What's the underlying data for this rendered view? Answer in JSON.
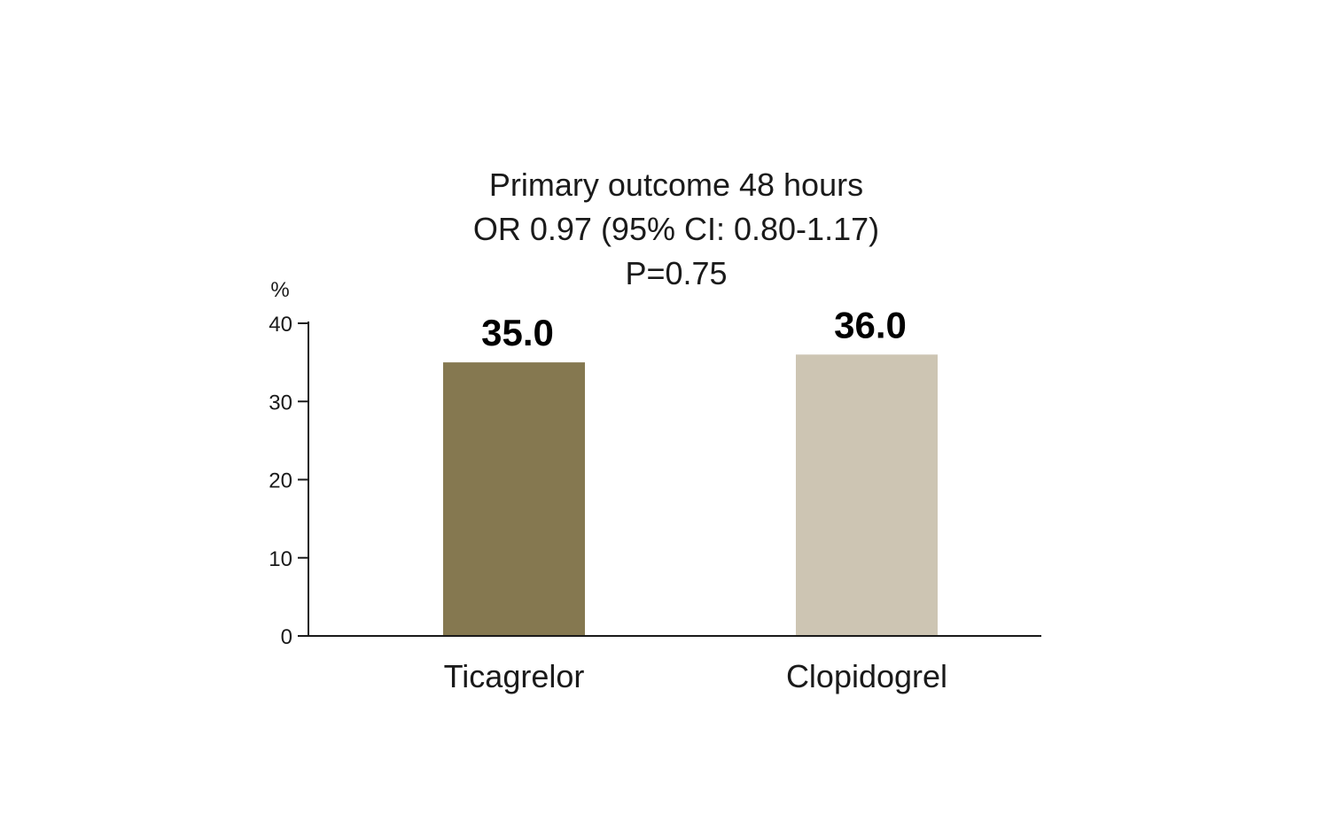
{
  "chart_data": {
    "type": "bar",
    "title_lines": [
      "Primary outcome 48 hours",
      "OR 0.97 (95% CI: 0.80-1.17)",
      "P=0.75"
    ],
    "ylabel": "%",
    "xlabel": "",
    "categories": [
      "Ticagrelor",
      "Clopidogrel"
    ],
    "values": [
      35.0,
      36.0
    ],
    "value_labels": [
      "35.0",
      "36.0"
    ],
    "bar_colors": [
      "#857850",
      "#cdc5b3"
    ],
    "ylim": [
      0,
      40
    ],
    "yticks": [
      0,
      10,
      20,
      30,
      40
    ],
    "ytick_labels": [
      "0",
      "10",
      "20",
      "30",
      "40"
    ],
    "grid": false,
    "legend": "none"
  }
}
